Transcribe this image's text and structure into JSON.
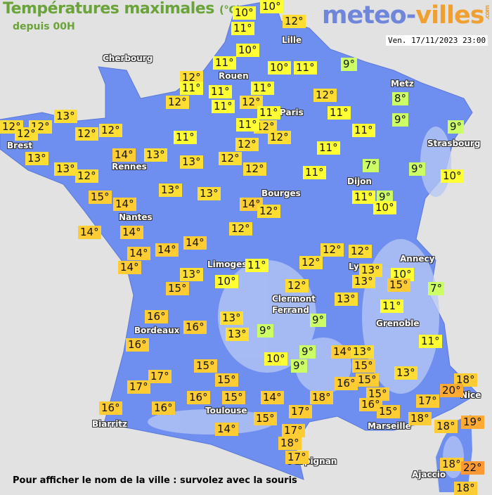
{
  "header": {
    "title": "Températures maximales",
    "title_unit": "(°C)",
    "subtitle": "depuis 00H",
    "logo": {
      "part1": "meteo-",
      "part2": "villes",
      "suffix": ".com"
    },
    "datetime": "Ven. 17/11/2023 23:00"
  },
  "footer": "Pour afficher le nom de la ville : survolez avec la souris",
  "colors": {
    "background": "#e2e2e2",
    "land": "#6f8ff0",
    "land_relief": "#b8c8f4",
    "temp_le_9": "#ccff66",
    "temp_10_11": "#ffff33",
    "temp_12_13": "#ffdd33",
    "temp_14_18": "#ffcc33",
    "temp_19_20": "#ffaa33",
    "temp_ge_21": "#ff9933"
  },
  "cities": [
    "Lille",
    "Cherbourg",
    "Rouen",
    "Paris",
    "Metz",
    "Strasbourg",
    "Brest",
    "Rennes",
    "Nantes",
    "Dijon",
    "Bourges",
    "Limoges",
    "Lyon",
    "Annecy",
    "Clermont",
    "Ferrand",
    "Grenoble",
    "Bordeaux",
    "Nice",
    "Marseille",
    "Toulouse",
    "Biarritz",
    "Perpignan",
    "Ajaccio"
  ],
  "temperatures": [
    "10°",
    "10°",
    "12°",
    "11°",
    "10°",
    "9°",
    "11°",
    "10°",
    "11°",
    "12°",
    "11°",
    "11°",
    "11°",
    "12°",
    "12°",
    "11°",
    "12°",
    "11°",
    "11°",
    "12°",
    "11°",
    "12°",
    "11°",
    "8°",
    "9°",
    "9°",
    "13°",
    "12°",
    "12°",
    "12°",
    "12°",
    "12°",
    "11°",
    "12°",
    "11°",
    "13°",
    "14°",
    "13°",
    "13°",
    "12°",
    "13°",
    "12°",
    "12°",
    "11°",
    "7°",
    "9°",
    "10°",
    "15°",
    "14°",
    "13°",
    "13°",
    "14°",
    "12°",
    "11°",
    "9°",
    "10°",
    "14°",
    "14°",
    "14°",
    "12°",
    "14°",
    "14°",
    "12°",
    "12°",
    "14°",
    "11°",
    "12°",
    "13°",
    "10°",
    "13°",
    "15°",
    "10°",
    "12°",
    "13°",
    "15°",
    "7°",
    "13°",
    "11°",
    "16°",
    "13°",
    "9°",
    "16°",
    "9°",
    "13°",
    "11°",
    "16°",
    "9°",
    "14°",
    "13°",
    "10°",
    "9°",
    "15°",
    "15°",
    "13°",
    "17°",
    "15°",
    "16°",
    "15°",
    "18°",
    "17°",
    "20°",
    "15°",
    "16°",
    "15°",
    "14°",
    "18°",
    "16°",
    "17°",
    "17°",
    "16°",
    "16°",
    "15°",
    "18°",
    "19°",
    "15°",
    "14°",
    "17°",
    "18°",
    "18°",
    "17°",
    "18°",
    "22°",
    "18°"
  ]
}
